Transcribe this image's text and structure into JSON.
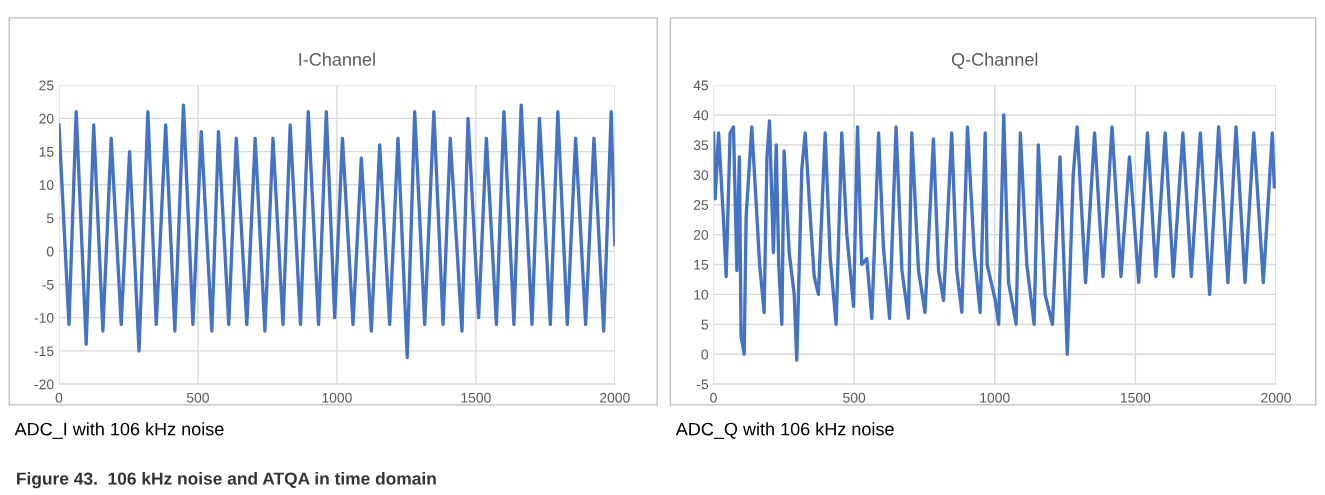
{
  "chart_data": [
    {
      "type": "line",
      "title": "I-Channel",
      "xlim": [
        0,
        2000
      ],
      "xticks": [
        0,
        500,
        1000,
        1500,
        2000
      ],
      "ylim": [
        -20,
        25
      ],
      "yticks": [
        -20,
        -15,
        -10,
        -5,
        0,
        5,
        10,
        15,
        20,
        25
      ],
      "grid": true,
      "marker": "none",
      "line_style": "solid",
      "annotations": [
        "ADC_I with 106 kHz noise",
        "Figure 43.  106 kHz noise and ATQA in time domain"
      ],
      "series": [
        {
          "color": "#4472c4",
          "x": [
            0,
            36,
            62,
            98,
            125,
            158,
            188,
            224,
            254,
            288,
            320,
            350,
            384,
            417,
            448,
            482,
            512,
            550,
            574,
            611,
            638,
            676,
            706,
            741,
            770,
            806,
            832,
            869,
            897,
            934,
            962,
            992,
            1020,
            1058,
            1088,
            1124,
            1154,
            1190,
            1220,
            1253,
            1280,
            1316,
            1349,
            1382,
            1408,
            1450,
            1472,
            1510,
            1538,
            1574,
            1601,
            1637,
            1663,
            1702,
            1729,
            1768,
            1795,
            1829,
            1859,
            1895,
            1925,
            1960,
            1987,
            2000
          ],
          "values": [
            19,
            -11,
            21,
            -14,
            19,
            -12,
            17,
            -11,
            15,
            -15,
            21,
            -11,
            19,
            -12,
            22,
            -11,
            18,
            -12,
            18,
            -11,
            17,
            -11,
            17,
            -12,
            17,
            -11,
            19,
            -11,
            21,
            -11,
            21,
            -10,
            17,
            -11,
            14,
            -12,
            16,
            -11,
            17,
            -16,
            21,
            -11,
            21,
            -11,
            17,
            -12,
            20,
            -10,
            17,
            -11,
            21,
            -11,
            22,
            -11,
            20,
            -11,
            21,
            -11,
            17,
            -11,
            17,
            -12,
            21,
            1
          ]
        }
      ]
    },
    {
      "type": "line",
      "title": "Q-Channel",
      "xlim": [
        0,
        2000
      ],
      "xticks": [
        0,
        500,
        1000,
        1500,
        2000
      ],
      "ylim": [
        -5,
        45
      ],
      "yticks": [
        -5,
        0,
        5,
        10,
        15,
        20,
        25,
        30,
        35,
        40,
        45
      ],
      "grid": true,
      "marker": "none",
      "line_style": "solid",
      "annotations": [
        "ADC_Q with 106 kHz noise"
      ],
      "series": [
        {
          "color": "#4472c4",
          "x": [
            0,
            6,
            18,
            36,
            45,
            59,
            71,
            83,
            92,
            98,
            109,
            116,
            136,
            152,
            164,
            180,
            190,
            199,
            213,
            223,
            232,
            243,
            251,
            269,
            287,
            296,
            314,
            326,
            344,
            358,
            373,
            397,
            415,
            436,
            456,
            474,
            498,
            512,
            527,
            545,
            563,
            587,
            604,
            626,
            649,
            670,
            693,
            705,
            729,
            752,
            782,
            800,
            818,
            847,
            865,
            883,
            903,
            927,
            948,
            966,
            973,
            1002,
            1014,
            1032,
            1049,
            1076,
            1091,
            1114,
            1140,
            1155,
            1179,
            1205,
            1232,
            1258,
            1279,
            1293,
            1323,
            1355,
            1385,
            1417,
            1449,
            1479,
            1512,
            1543,
            1573,
            1606,
            1635,
            1669,
            1699,
            1731,
            1764,
            1796,
            1829,
            1858,
            1890,
            1921,
            1955,
            1987,
            1994
          ],
          "values": [
            37,
            26,
            37,
            22,
            13,
            37,
            38,
            14,
            33,
            3,
            0,
            23,
            38,
            25,
            15,
            7,
            33,
            39,
            17,
            35,
            15,
            5,
            34,
            17,
            10,
            -1,
            31,
            37,
            23,
            13,
            10,
            37,
            16,
            5,
            37,
            20,
            8,
            38,
            15,
            16,
            6,
            37,
            18,
            6,
            38,
            14,
            6,
            37,
            14,
            7,
            36,
            14,
            9,
            37,
            14,
            7,
            38,
            17,
            7,
            37,
            15,
            9,
            5,
            40,
            12,
            5,
            37,
            15,
            5,
            35,
            10,
            5,
            33,
            0,
            30,
            38,
            12,
            37,
            13,
            38,
            13,
            33,
            12,
            37,
            13,
            37,
            13,
            37,
            13,
            37,
            10,
            38,
            12,
            38,
            12,
            37,
            12,
            37,
            28
          ]
        }
      ]
    }
  ]
}
